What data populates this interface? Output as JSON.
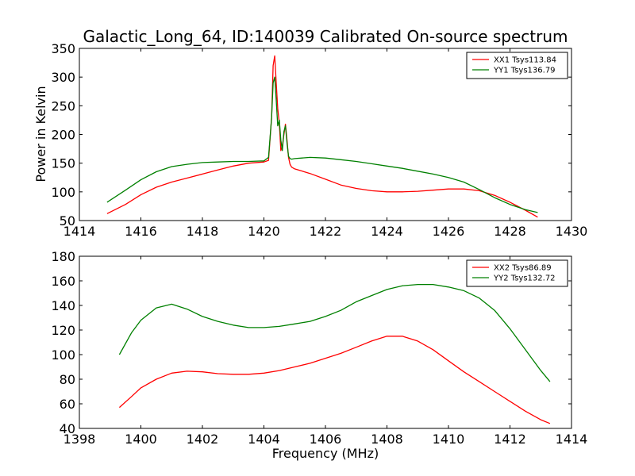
{
  "chart_data": [
    {
      "type": "line",
      "title": "Galactic_Long_64, ID:140039 Calibrated On-source spectrum",
      "xlabel": "",
      "ylabel": "Power in Kelvin",
      "xlim": [
        1414,
        1430
      ],
      "ylim": [
        50,
        350
      ],
      "xticks": [
        1414,
        1416,
        1418,
        1420,
        1422,
        1424,
        1426,
        1428,
        1430
      ],
      "yticks": [
        50,
        100,
        150,
        200,
        250,
        300,
        350
      ],
      "legend_position": "top-right",
      "series": [
        {
          "name": "XX1 Tsys113.84",
          "color": "#ff0000",
          "x": [
            1414.9,
            1415.5,
            1416,
            1416.5,
            1417,
            1417.5,
            1418,
            1418.5,
            1419,
            1419.5,
            1420,
            1420.15,
            1420.25,
            1420.3,
            1420.35,
            1420.4,
            1420.45,
            1420.5,
            1420.55,
            1420.6,
            1420.65,
            1420.7,
            1420.75,
            1420.8,
            1420.85,
            1420.9,
            1421,
            1421.5,
            1422,
            1422.5,
            1423,
            1423.5,
            1424,
            1424.5,
            1425,
            1425.5,
            1426,
            1426.5,
            1427,
            1427.5,
            1428,
            1428.5,
            1428.9
          ],
          "values": [
            62,
            78,
            95,
            108,
            117,
            124,
            131,
            138,
            145,
            150,
            152,
            155,
            230,
            320,
            337,
            290,
            245,
            220,
            172,
            180,
            200,
            218,
            190,
            160,
            148,
            143,
            140,
            132,
            122,
            112,
            106,
            102,
            100,
            100,
            101,
            103,
            105,
            105,
            102,
            94,
            82,
            68,
            56
          ]
        },
        {
          "name": "YY1 Tsys136.79",
          "color": "#008000",
          "x": [
            1414.9,
            1415.5,
            1416,
            1416.5,
            1417,
            1417.5,
            1418,
            1418.5,
            1419,
            1419.5,
            1420,
            1420.15,
            1420.25,
            1420.3,
            1420.35,
            1420.4,
            1420.45,
            1420.5,
            1420.55,
            1420.6,
            1420.65,
            1420.7,
            1420.75,
            1420.8,
            1420.85,
            1420.9,
            1421,
            1421.5,
            1422,
            1422.5,
            1423,
            1423.5,
            1424,
            1424.5,
            1425,
            1425.5,
            1426,
            1426.5,
            1427,
            1427.5,
            1428,
            1428.5,
            1428.9
          ],
          "values": [
            82,
            103,
            121,
            135,
            144,
            148,
            151,
            152,
            153,
            153,
            154,
            160,
            230,
            290,
            300,
            260,
            215,
            225,
            190,
            172,
            205,
            215,
            185,
            162,
            158,
            157,
            158,
            160,
            159,
            156,
            153,
            149,
            145,
            141,
            136,
            131,
            125,
            117,
            104,
            90,
            78,
            69,
            64
          ]
        }
      ]
    },
    {
      "type": "line",
      "title": "",
      "xlabel": "Frequency (MHz)",
      "ylabel": "",
      "xlim": [
        1398,
        1414
      ],
      "ylim": [
        40,
        180
      ],
      "xticks": [
        1398,
        1400,
        1402,
        1404,
        1406,
        1408,
        1410,
        1412,
        1414
      ],
      "yticks": [
        40,
        60,
        80,
        100,
        120,
        140,
        160,
        180
      ],
      "legend_position": "top-right",
      "series": [
        {
          "name": "XX2 Tsys86.89",
          "color": "#ff0000",
          "x": [
            1399.3,
            1399.7,
            1400,
            1400.5,
            1401,
            1401.5,
            1402,
            1402.5,
            1403,
            1403.5,
            1404,
            1404.5,
            1405,
            1405.5,
            1406,
            1406.5,
            1407,
            1407.5,
            1408,
            1408.5,
            1409,
            1409.5,
            1410,
            1410.5,
            1411,
            1411.5,
            1412,
            1412.5,
            1413,
            1413.3
          ],
          "values": [
            57,
            66,
            73,
            80,
            85,
            86.5,
            86,
            84.5,
            84,
            84,
            85,
            87,
            90,
            93,
            97,
            101,
            106,
            111,
            115,
            115,
            111,
            104,
            95,
            86,
            78,
            70,
            62,
            54,
            47,
            44
          ]
        },
        {
          "name": "YY2 Tsys132.72",
          "color": "#008000",
          "x": [
            1399.3,
            1399.7,
            1400,
            1400.5,
            1401,
            1401.5,
            1402,
            1402.5,
            1403,
            1403.5,
            1404,
            1404.5,
            1405,
            1405.5,
            1406,
            1406.5,
            1407,
            1407.5,
            1408,
            1408.5,
            1409,
            1409.5,
            1410,
            1410.5,
            1411,
            1411.5,
            1412,
            1412.5,
            1413,
            1413.3
          ],
          "values": [
            100,
            118,
            128,
            138,
            141,
            137,
            131,
            127,
            124,
            122,
            122,
            123,
            125,
            127,
            131,
            136,
            143,
            148,
            153,
            156,
            157,
            157,
            155,
            152,
            146,
            136,
            121,
            104,
            87,
            78
          ]
        }
      ]
    }
  ]
}
